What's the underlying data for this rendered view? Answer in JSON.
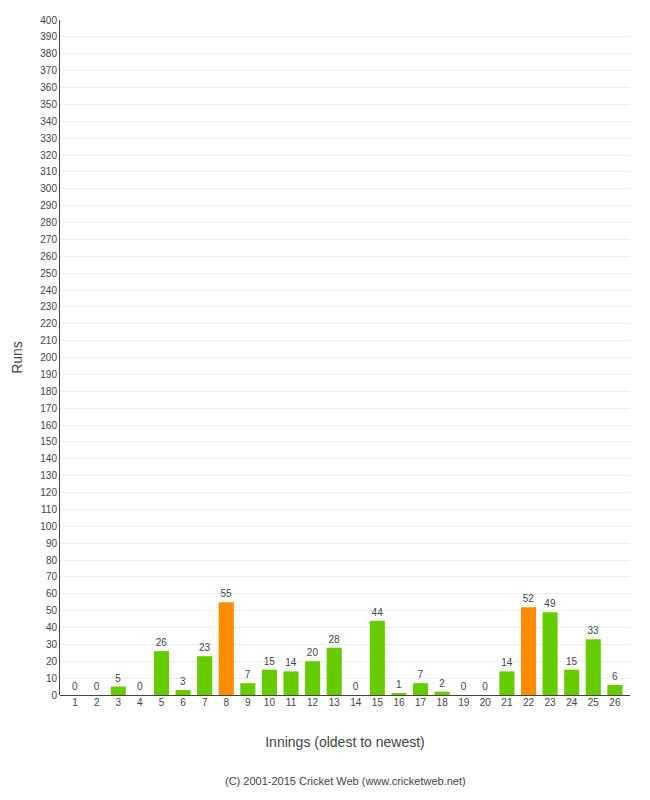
{
  "chart_data": {
    "type": "bar",
    "categories": [
      "1",
      "2",
      "3",
      "4",
      "5",
      "6",
      "7",
      "8",
      "9",
      "10",
      "11",
      "12",
      "13",
      "14",
      "15",
      "16",
      "17",
      "18",
      "19",
      "20",
      "21",
      "22",
      "23",
      "24",
      "25",
      "26"
    ],
    "values": [
      0,
      0,
      5,
      0,
      26,
      3,
      23,
      55,
      7,
      15,
      14,
      20,
      28,
      0,
      44,
      1,
      7,
      2,
      0,
      0,
      14,
      52,
      49,
      15,
      33,
      6
    ],
    "colors": [
      "#66cc00",
      "#66cc00",
      "#66cc00",
      "#66cc00",
      "#66cc00",
      "#66cc00",
      "#66cc00",
      "#ff8c00",
      "#66cc00",
      "#66cc00",
      "#66cc00",
      "#66cc00",
      "#66cc00",
      "#66cc00",
      "#66cc00",
      "#66cc00",
      "#66cc00",
      "#66cc00",
      "#66cc00",
      "#66cc00",
      "#66cc00",
      "#ff8c00",
      "#66cc00",
      "#66cc00",
      "#66cc00",
      "#66cc00"
    ],
    "xlabel": "Innings (oldest to newest)",
    "ylabel": "Runs",
    "ylim": [
      0,
      400
    ],
    "yticks": [
      0,
      10,
      20,
      30,
      40,
      50,
      60,
      70,
      80,
      90,
      100,
      110,
      120,
      130,
      140,
      150,
      160,
      170,
      180,
      190,
      200,
      210,
      220,
      230,
      240,
      250,
      260,
      270,
      280,
      290,
      300,
      310,
      320,
      330,
      340,
      350,
      360,
      370,
      380,
      390,
      400
    ],
    "grid": true,
    "data_labels": true,
    "annotations": [
      "(C) 2001-2015 Cricket Web (www.cricketweb.net)"
    ]
  }
}
